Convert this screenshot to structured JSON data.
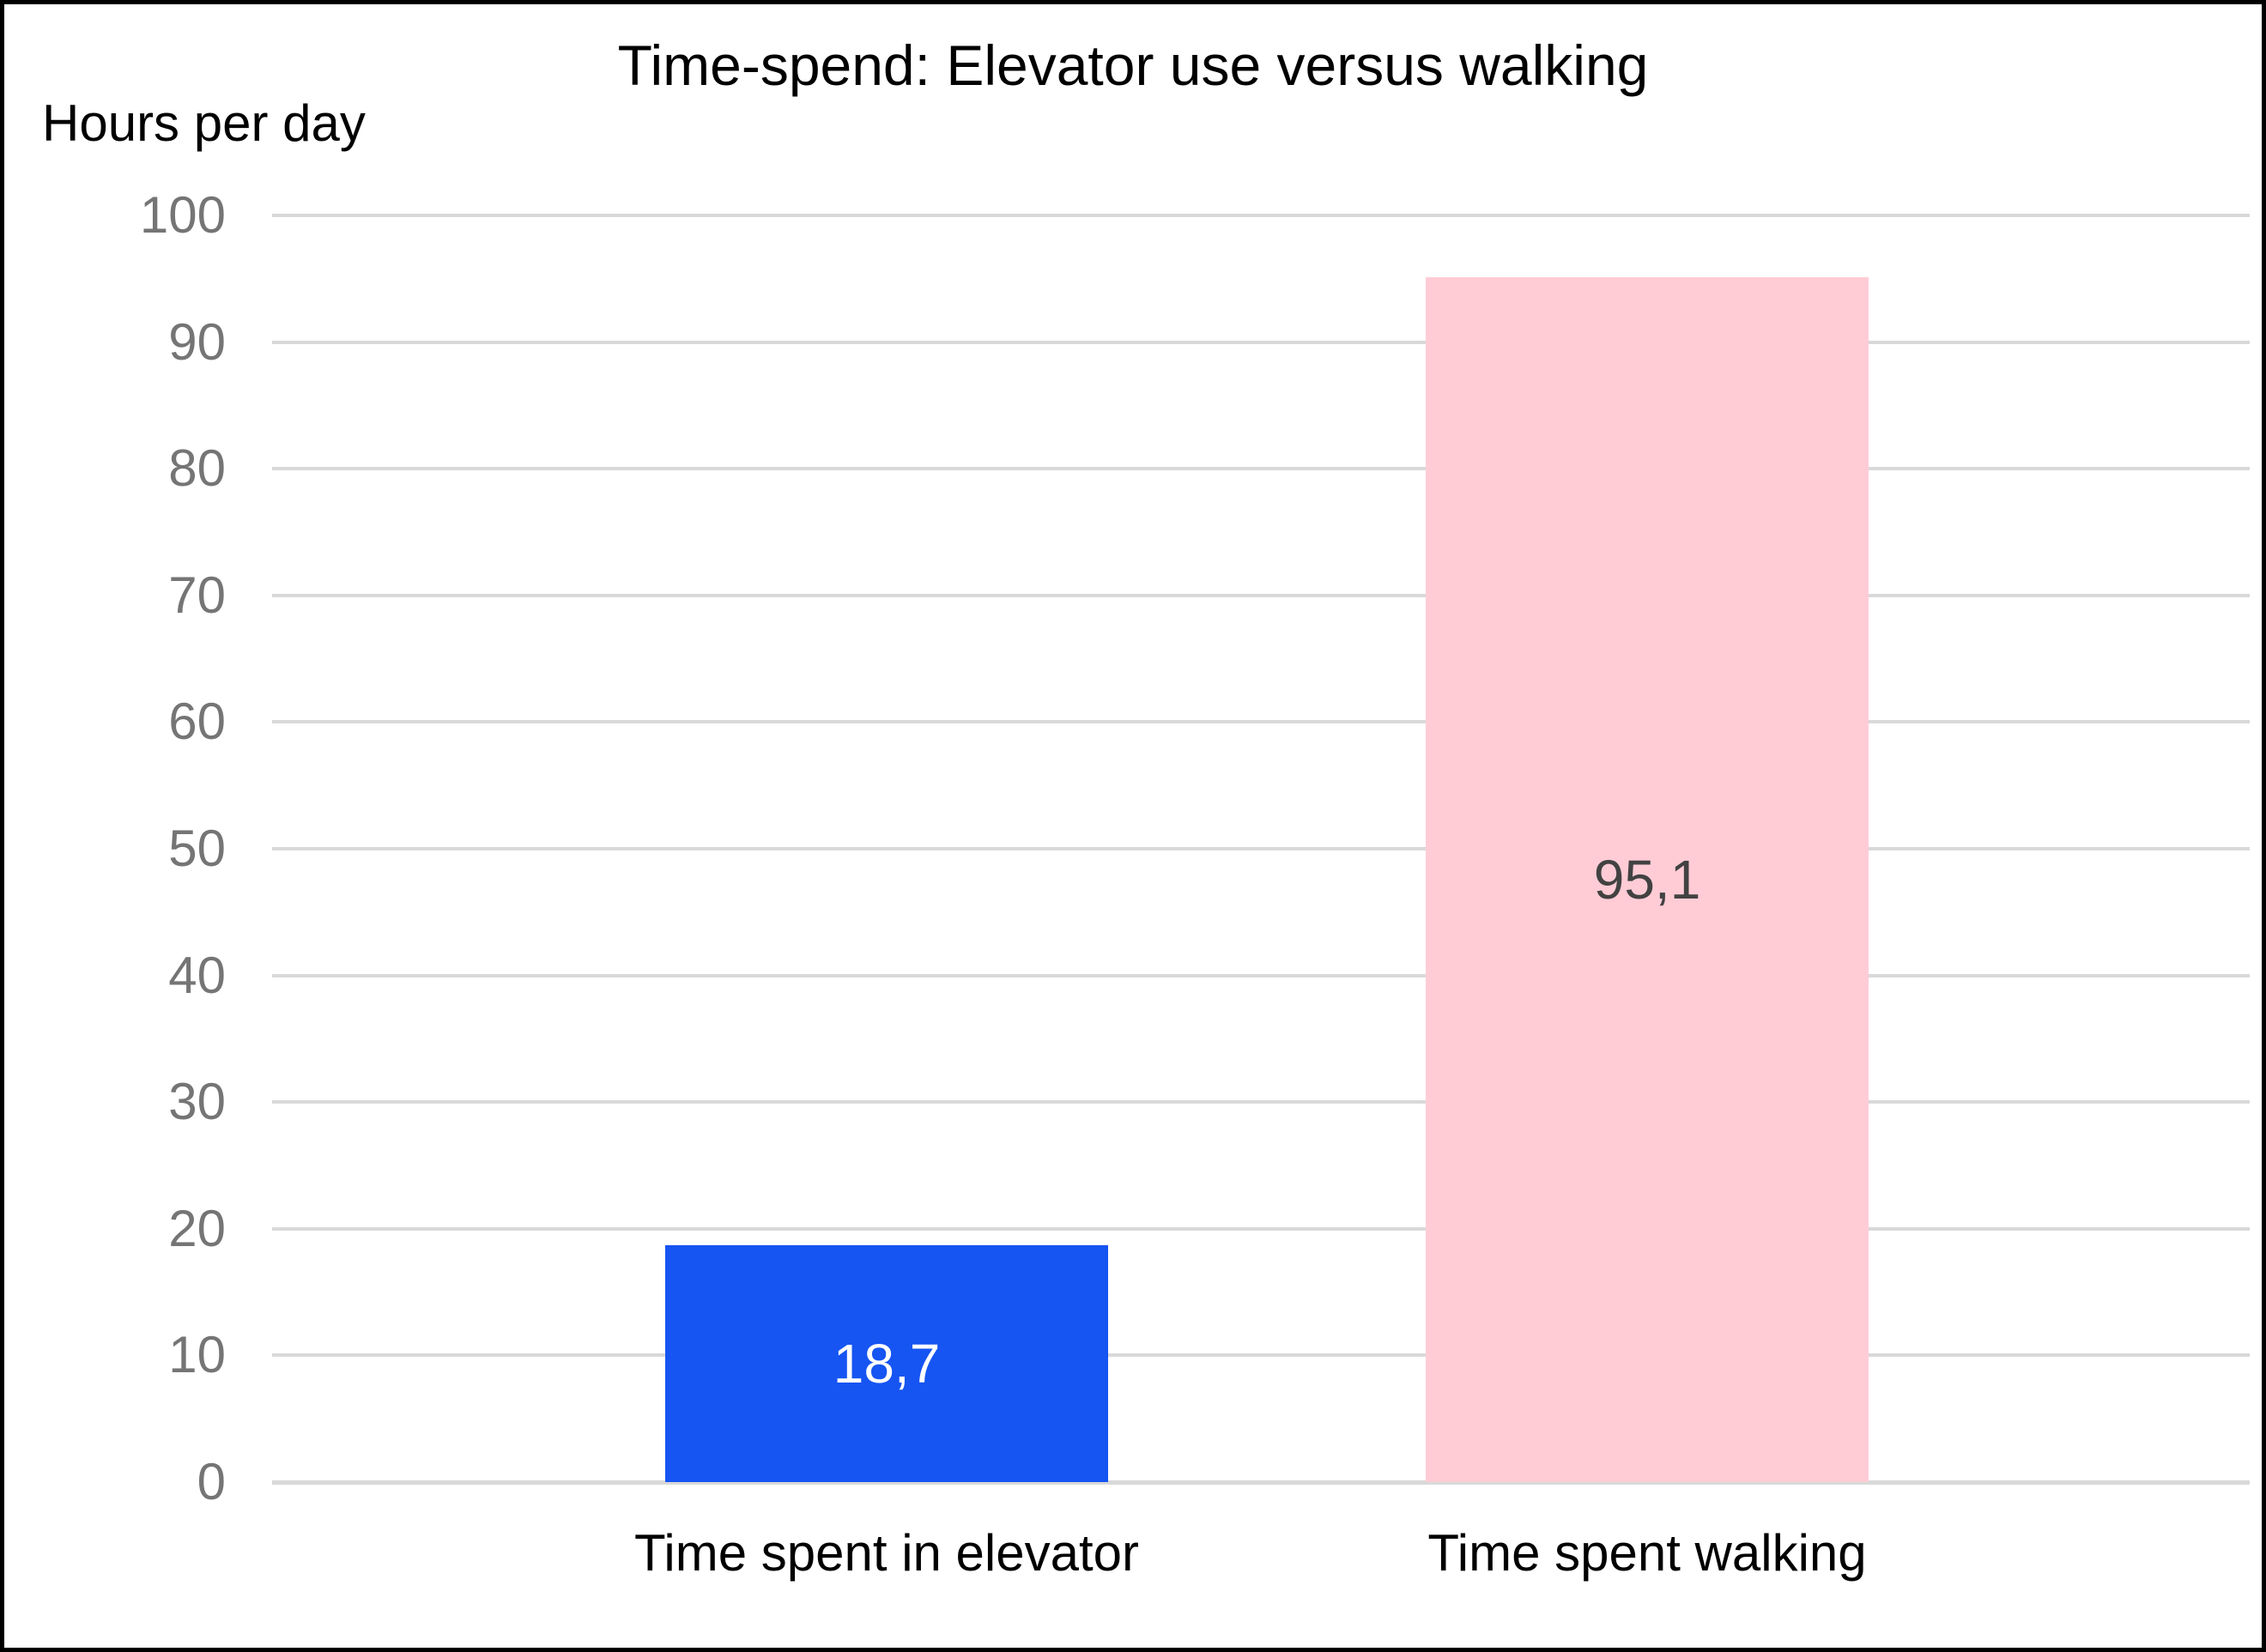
{
  "chart_data": {
    "type": "bar",
    "title": "Time-spend: Elevator use versus walking",
    "ylabel": "Hours per day",
    "xlabel": "",
    "categories": [
      "Time spent in elevator",
      "Time spent walking"
    ],
    "values": [
      18.7,
      95.1
    ],
    "value_labels": [
      "18,7",
      "95,1"
    ],
    "bar_colors": [
      "#1655f2",
      "#ffccd6"
    ],
    "value_label_colors": [
      "#ffffff",
      "#424242"
    ],
    "ylim": [
      0,
      100
    ],
    "yticks": [
      0,
      10,
      20,
      30,
      40,
      50,
      60,
      70,
      80,
      90,
      100
    ],
    "grid": true,
    "legend": "none",
    "colors": {
      "gridline": "#d9d9d9",
      "tick_label": "#757575",
      "text": "#000000",
      "background": "#ffffff",
      "frame_border": "#000000"
    }
  }
}
